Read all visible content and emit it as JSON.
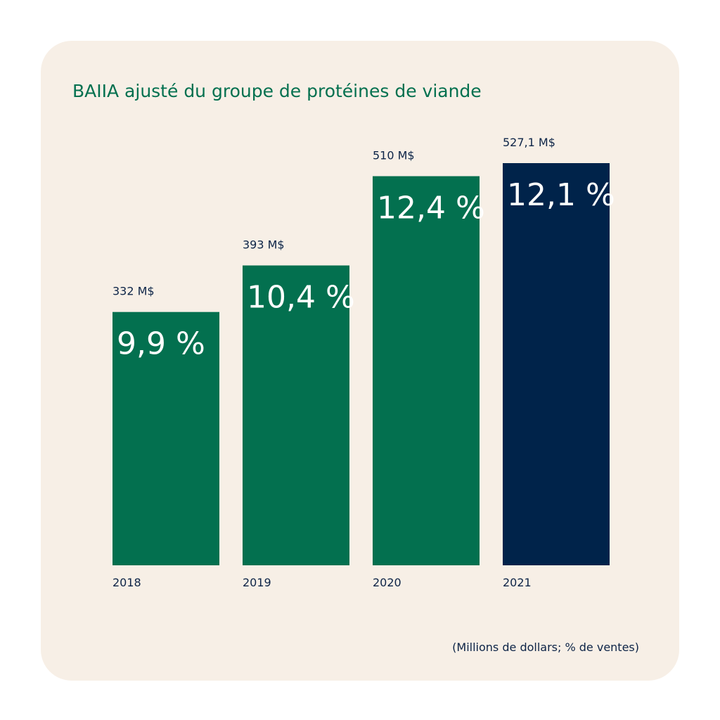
{
  "chart_data": {
    "type": "bar",
    "title": "BAIIA ajusté du groupe de protéines de viande",
    "note": "(Millions de dollars; % de ventes)",
    "categories": [
      "2018",
      "2019",
      "2020",
      "2021"
    ],
    "values": [
      332,
      393,
      510,
      527.1
    ],
    "value_labels": [
      "332 M$",
      "393 M$",
      "510 M$",
      "527,1 M$"
    ],
    "percent_labels": [
      "9,9 %",
      "10,4 %",
      "12,4 %",
      "12,1 %"
    ],
    "percent_values": [
      9.9,
      10.4,
      12.4,
      12.1
    ],
    "bar_colors": [
      "#03704f",
      "#03704f",
      "#03704f",
      "#00234a"
    ],
    "xlabel": "",
    "ylabel": "",
    "ylim": [
      0,
      527.1
    ],
    "grid": false,
    "legend": "none"
  },
  "colors": {
    "background": "#f7efe6",
    "title": "#03704f",
    "text": "#0d2447",
    "green": "#03704f",
    "navy": "#00234a"
  }
}
